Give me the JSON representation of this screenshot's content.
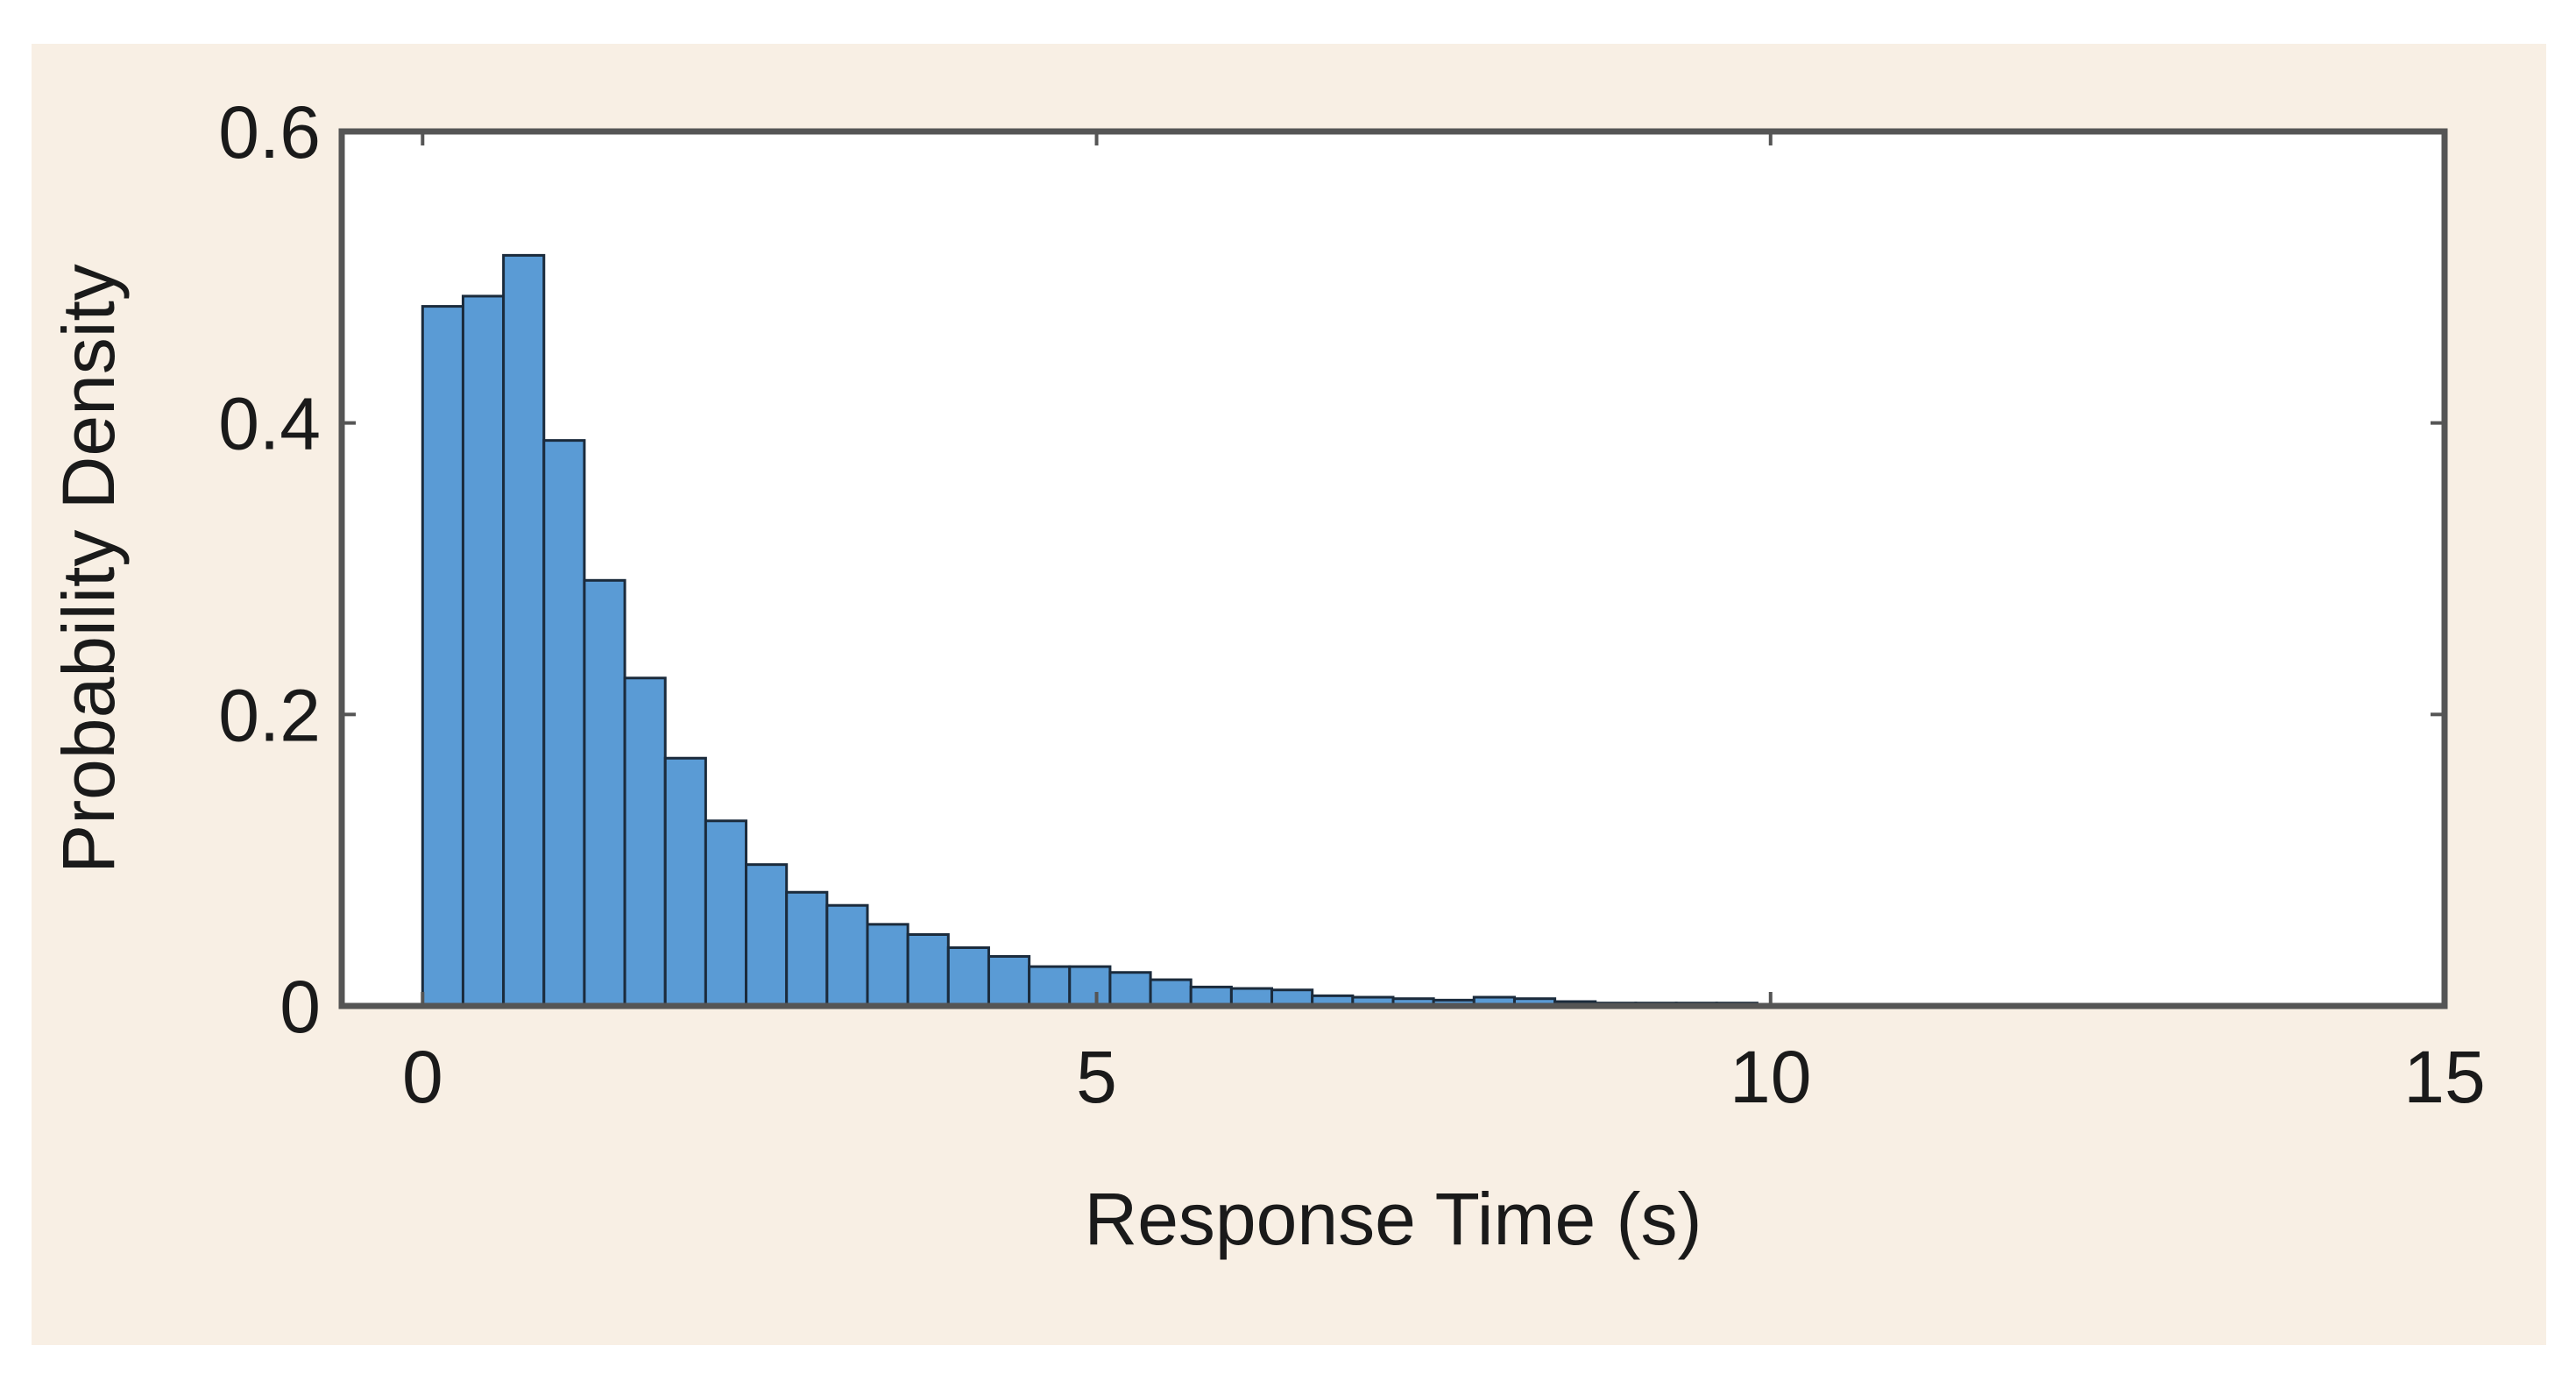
{
  "colors": {
    "figure_background": "#F8EFE4",
    "plot_background": "#FFFFFF",
    "bar_fill": "#5A9BD5",
    "bar_edge": "#1B2B3C",
    "axis": "#555555"
  },
  "chart_data": {
    "type": "bar",
    "subtype": "histogram",
    "title": "",
    "xlabel": "Response Time (s)",
    "ylabel": "Probability Density",
    "xlim": [
      -0.6,
      15
    ],
    "ylim": [
      0,
      0.6
    ],
    "xticks": [
      0,
      5,
      10,
      15
    ],
    "yticks": [
      0,
      0.2,
      0.4,
      0.6
    ],
    "xtick_labels": [
      "0",
      "5",
      "10",
      "15"
    ],
    "ytick_labels": [
      "0",
      "0.2",
      "0.4",
      "0.6"
    ],
    "grid": false,
    "legend": "none",
    "bin_width": 0.3,
    "bin_starts": [
      0,
      0.3,
      0.6,
      0.9,
      1.2,
      1.5,
      1.8,
      2.1,
      2.4,
      2.7,
      3.0,
      3.3,
      3.6,
      3.9,
      4.2,
      4.5,
      4.8,
      5.1,
      5.4,
      5.7,
      6.0,
      6.3,
      6.6,
      6.9,
      7.2,
      7.5,
      7.8,
      8.1,
      8.4,
      8.7,
      9.0,
      9.3,
      9.6,
      9.9,
      10.2,
      10.5,
      10.8,
      11.1,
      11.4,
      11.7,
      12.0,
      12.3,
      12.6,
      12.9,
      13.2,
      13.5,
      13.8,
      14.1
    ],
    "values": [
      0.48,
      0.487,
      0.515,
      0.388,
      0.292,
      0.225,
      0.17,
      0.127,
      0.097,
      0.078,
      0.069,
      0.056,
      0.049,
      0.04,
      0.034,
      0.027,
      0.027,
      0.023,
      0.018,
      0.013,
      0.012,
      0.011,
      0.007,
      0.006,
      0.005,
      0.004,
      0.006,
      0.005,
      0.003,
      0.002,
      0.002,
      0.002,
      0.002,
      0.001,
      0.001,
      0.001,
      0.001,
      0.001,
      0.001,
      0.001,
      0.001,
      0.001,
      0.001,
      0.001,
      0.001,
      0.001,
      0.001,
      0.001
    ]
  }
}
